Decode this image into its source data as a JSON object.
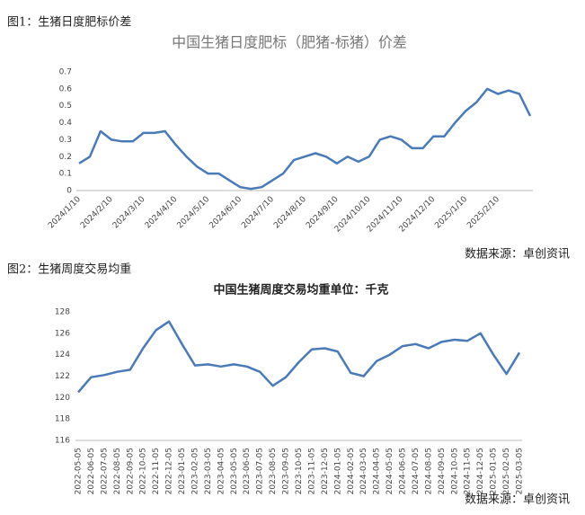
{
  "captions": [
    "图1：生猪日度肥标价差",
    "图2：生猪周度交易均重"
  ],
  "sources": [
    "数据来源：卓创资讯",
    "数据来源：卓创资讯"
  ],
  "chart_data": [
    {
      "type": "line",
      "title": "中国生猪日度肥标（肥猪-标猪）价差",
      "categories": [
        "2024/1/10",
        null,
        null,
        "2024/2/10",
        null,
        null,
        "2024/3/10",
        null,
        null,
        "2024/4/10",
        null,
        null,
        "2024/5/10",
        null,
        null,
        "2024/6/10",
        null,
        null,
        "2024/7/10",
        null,
        null,
        "2024/8/10",
        null,
        null,
        "2024/9/10",
        null,
        null,
        "2024/10/10",
        null,
        null,
        "2024/11/10",
        null,
        null,
        "2024/12/10",
        null,
        null,
        "2025/1/10",
        null,
        null,
        "2025/2/10",
        null,
        null,
        null
      ],
      "values": [
        0.16,
        0.2,
        0.35,
        0.3,
        0.29,
        0.29,
        0.34,
        0.34,
        0.35,
        0.27,
        0.2,
        0.14,
        0.1,
        0.1,
        0.06,
        0.02,
        0.01,
        0.02,
        0.06,
        0.1,
        0.18,
        0.2,
        0.22,
        0.2,
        0.16,
        0.2,
        0.17,
        0.2,
        0.3,
        0.32,
        0.3,
        0.25,
        0.25,
        0.32,
        0.32,
        0.4,
        0.47,
        0.52,
        0.6,
        0.57,
        0.59,
        0.57,
        0.44
      ],
      "color": "#4a7ab8",
      "ylim": [
        0,
        0.7
      ],
      "yticks": [
        0,
        0.1,
        0.2,
        0.3,
        0.4,
        0.5,
        0.6,
        0.7
      ],
      "grid": false
    },
    {
      "type": "line",
      "title": "中国生猪周度交易均重单位：千克",
      "categories": [
        "2022-05-05",
        "2022-06-05",
        "2022-07-05",
        "2022-08-05",
        "2022-09-05",
        "2022-10-05",
        "2022-11-05",
        "2022-12-05",
        "2023-01-05",
        "2023-02-05",
        "2023-03-05",
        "2023-04-05",
        "2023-05-05",
        "2023-06-05",
        "2023-07-05",
        "2023-08-05",
        "2023-09-05",
        "2023-10-05",
        "2023-11-05",
        "2023-12-05",
        "2024-01-05",
        "2024-02-05",
        "2024-03-05",
        "2024-04-05",
        "2024-05-05",
        "2024-06-05",
        "2024-07-05",
        "2024-08-05",
        "2024-09-05",
        "2024-10-05",
        "2024-11-05",
        "2024-12-05",
        "2025-01-05",
        "2025-02-05",
        "2025-03-05"
      ],
      "values": [
        120.5,
        121.9,
        122.1,
        122.4,
        122.6,
        124.6,
        126.3,
        127.1,
        125.0,
        123.0,
        123.1,
        122.9,
        123.1,
        122.9,
        122.4,
        121.1,
        121.9,
        123.3,
        124.5,
        124.6,
        124.3,
        122.3,
        122.0,
        123.4,
        124.0,
        124.8,
        125.0,
        124.6,
        125.2,
        125.4,
        125.3,
        126.0,
        124.0,
        122.2,
        124.2
      ],
      "color": "#4a7ab8",
      "ylim": [
        116,
        128
      ],
      "yticks": [
        116,
        118,
        120,
        122,
        124,
        126,
        128
      ],
      "grid": false
    }
  ]
}
